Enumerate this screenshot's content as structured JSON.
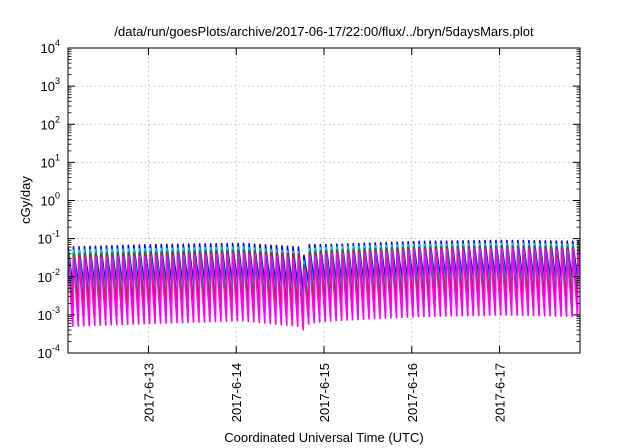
{
  "chart_data": {
    "type": "line",
    "title": "/data/run/goesPlots/archive/2017-06-17/22:00/flux/../bryn/5daysMars.plot",
    "xlabel": "Coordinated Universal Time (UTC)",
    "ylabel": "cGy/day",
    "yscale": "log",
    "ylim": [
      0.0001,
      10000
    ],
    "xlim": [
      "2017-06-12 02:00",
      "2017-06-17 22:00"
    ],
    "x_ticks": [
      "2017-6-13",
      "2017-6-14",
      "2017-6-15",
      "2017-6-16",
      "2017-6-17"
    ],
    "y_ticks": [
      {
        "base": "10",
        "exp": "-4"
      },
      {
        "base": "10",
        "exp": "-3"
      },
      {
        "base": "10",
        "exp": "-2"
      },
      {
        "base": "10",
        "exp": "-1"
      },
      {
        "base": "10",
        "exp": "0"
      },
      {
        "base": "10",
        "exp": "1"
      },
      {
        "base": "10",
        "exp": "2"
      },
      {
        "base": "10",
        "exp": "3"
      },
      {
        "base": "10",
        "exp": "4"
      }
    ],
    "grid": true,
    "legend": "none",
    "sawtooth": {
      "period_hours": 1.5,
      "sample_hours": [
        0.0,
        24.0,
        48.0,
        63.0,
        64.4,
        66.0,
        72.0,
        96.0,
        120.0,
        140.0
      ],
      "series": [
        {
          "color": "#0000ff",
          "peak": [
            0.06,
            0.07,
            0.075,
            0.06,
            0.035,
            0.07,
            0.07,
            0.085,
            0.09,
            0.085
          ],
          "trough": [
            0.0055,
            0.0065,
            0.007,
            0.0055,
            0.0035,
            0.007,
            0.007,
            0.0085,
            0.009,
            0.0085
          ]
        },
        {
          "color": "#00dddd",
          "peak": [
            0.05,
            0.055,
            0.06,
            0.045,
            0.025,
            0.055,
            0.06,
            0.07,
            0.075,
            0.07
          ],
          "trough": [
            0.0024,
            0.003,
            0.0032,
            0.0022,
            0.0012,
            0.003,
            0.0032,
            0.004,
            0.0042,
            0.004
          ]
        },
        {
          "color": "#008b00",
          "peak": [
            0.04,
            0.045,
            0.05,
            0.038,
            0.02,
            0.045,
            0.05,
            0.06,
            0.065,
            0.06
          ],
          "trough": [
            0.0015,
            0.0018,
            0.002,
            0.0014,
            0.0007,
            0.0018,
            0.002,
            0.0025,
            0.0026,
            0.0025
          ]
        },
        {
          "color": "#ff0000",
          "peak": [
            0.035,
            0.04,
            0.045,
            0.04,
            0.018,
            0.04,
            0.045,
            0.055,
            0.06,
            0.055
          ],
          "trough": [
            0.0009,
            0.0011,
            0.0012,
            0.0009,
            0.0004,
            0.0011,
            0.0012,
            0.0015,
            0.0016,
            0.0015
          ]
        },
        {
          "color": "#ff00ff",
          "peak": [
            0.03,
            0.035,
            0.04,
            0.03,
            0.015,
            0.035,
            0.04,
            0.05,
            0.055,
            0.05
          ],
          "trough": [
            0.0005,
            0.0006,
            0.0007,
            0.0005,
            0.0004,
            0.0006,
            0.0007,
            0.0009,
            0.001,
            0.0009
          ]
        }
      ]
    }
  }
}
